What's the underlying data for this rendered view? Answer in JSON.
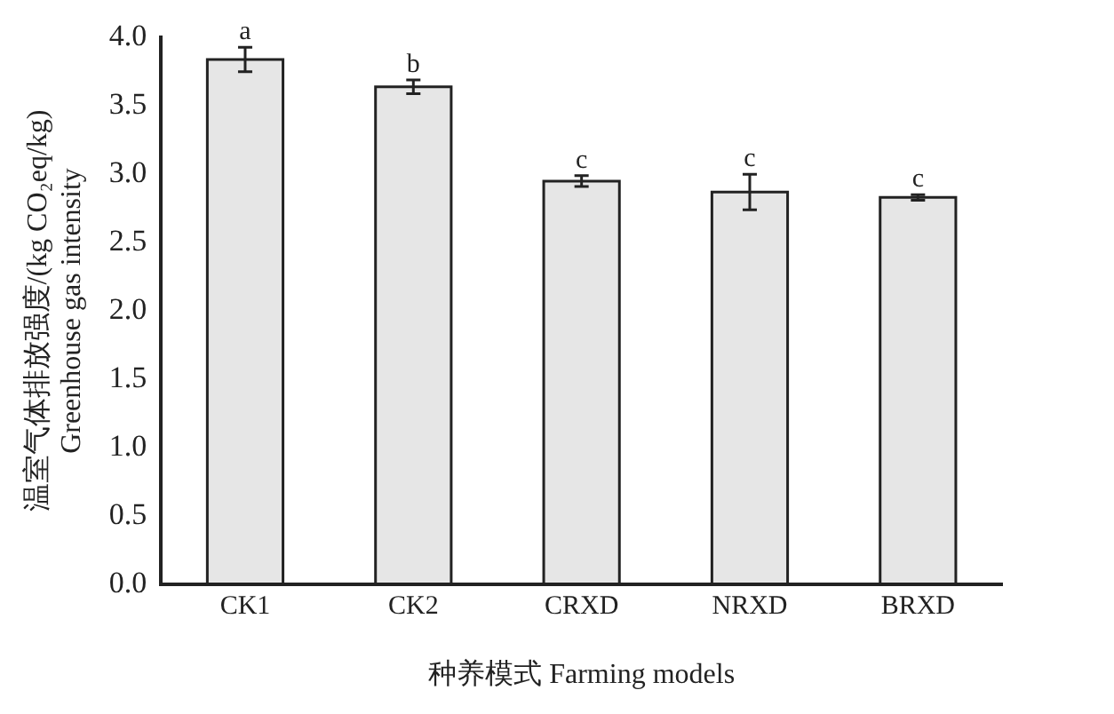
{
  "chart_data": {
    "type": "bar",
    "categories": [
      "CK1",
      "CK2",
      "CRXD",
      "NRXD",
      "BRXD"
    ],
    "values": [
      3.84,
      3.64,
      2.95,
      2.87,
      2.83
    ],
    "errors": [
      0.09,
      0.05,
      0.04,
      0.13,
      0.02
    ],
    "color": "#e6e6e6",
    "xlabel": "种养模式 Farming models",
    "ylabel": "温室气体排放强度/(kg CO₂eq/kg)\nGreenhouse gas intensity",
    "ylim": [
      0,
      4.0
    ],
    "yticks": [
      {
        "value": 0,
        "label": "0.0"
      },
      {
        "value": 0.5,
        "label": "0.5"
      },
      {
        "value": 1,
        "label": "1.0"
      },
      {
        "value": 1.5,
        "label": "1.5"
      },
      {
        "value": 2,
        "label": "2.0"
      },
      {
        "value": 2.5,
        "label": "2.5"
      },
      {
        "value": 3,
        "label": "3.0"
      },
      {
        "value": 3.5,
        "label": "3.5"
      },
      {
        "value": 4,
        "label": "4.0"
      }
    ],
    "annotations": [
      {
        "text": "a",
        "x": "CK1",
        "y": 3.93
      },
      {
        "text": "b",
        "x": "CK2",
        "y": 3.69
      },
      {
        "text": "c",
        "x": "CRXD",
        "y": 2.99
      },
      {
        "text": "c",
        "x": "NRXD",
        "y": 3.0
      },
      {
        "text": "c",
        "x": "BRXD",
        "y": 2.85
      }
    ],
    "grid": false,
    "legend": false
  }
}
